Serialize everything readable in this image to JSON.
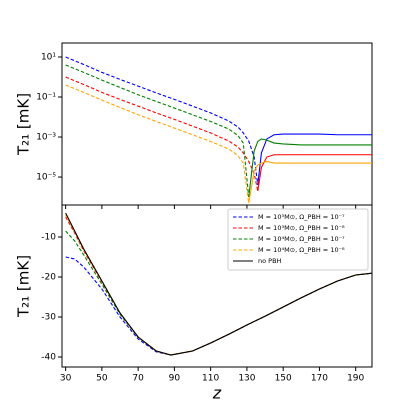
{
  "chart_data": [
    {
      "type": "line",
      "ylabel": "T₂₁  [mK]",
      "log_y": true,
      "x": [
        30,
        40,
        50,
        60,
        70,
        80,
        90,
        100,
        110,
        120,
        125,
        128,
        131,
        134,
        136,
        138,
        141,
        145,
        150,
        160,
        170,
        180,
        190,
        200
      ],
      "xlim": [
        28,
        199
      ],
      "xticks": [
        30,
        50,
        70,
        90,
        110,
        130,
        150,
        170,
        190
      ],
      "ylim": [
        4e-07,
        50
      ],
      "yticks": [
        {
          "value": 10,
          "label": "10¹"
        },
        {
          "value": 0.1,
          "label": "10⁻¹"
        },
        {
          "value": 0.001,
          "label": "10⁻³"
        },
        {
          "value": 1e-05,
          "label": "10⁻⁵"
        }
      ],
      "series": [
        {
          "color": "#0000ff",
          "dash": true,
          "values": [
            10,
            4.2,
            1.7,
            0.76,
            0.35,
            0.16,
            0.076,
            0.035,
            0.016,
            0.0063,
            0.0032,
            0.0016,
            0.00063,
            0.0001,
            4e-06,
            null,
            null,
            null,
            null,
            null,
            null,
            null,
            null,
            null
          ],
          "solid_values": [
            null,
            null,
            null,
            null,
            null,
            null,
            null,
            null,
            null,
            null,
            null,
            null,
            null,
            null,
            4e-06,
            0.00016,
            0.0008,
            0.0013,
            0.0014,
            0.0014,
            0.0014,
            0.0013,
            0.0013,
            0.0013
          ]
        },
        {
          "color": "#ff0000",
          "dash": true,
          "values": [
            1,
            0.42,
            0.17,
            0.076,
            0.035,
            0.016,
            0.0076,
            0.0035,
            0.0016,
            0.00063,
            0.00032,
            0.00016,
            6e-05,
            1.5e-05,
            2e-06,
            null,
            null,
            null,
            null,
            null,
            null,
            null,
            null,
            null
          ],
          "solid_values": [
            null,
            null,
            null,
            null,
            null,
            null,
            null,
            null,
            null,
            null,
            null,
            null,
            null,
            null,
            2e-06,
            3e-05,
            0.0001,
            0.00013,
            0.00013,
            0.00013,
            0.00013,
            0.00013,
            0.00013,
            0.00013
          ]
        },
        {
          "color": "#008000",
          "dash": true,
          "values": [
            4,
            1.7,
            0.7,
            0.3,
            0.13,
            0.06,
            0.028,
            0.013,
            0.006,
            0.0025,
            0.0012,
            0.0005,
            1e-06,
            null,
            null,
            null,
            null,
            null,
            null,
            null,
            null,
            null,
            null,
            null
          ],
          "solid_values": [
            null,
            null,
            null,
            null,
            null,
            null,
            null,
            null,
            null,
            null,
            null,
            null,
            1e-06,
            0.0002,
            0.0006,
            0.0008,
            0.0007,
            0.0005,
            0.00045,
            0.0004,
            0.0004,
            0.0004,
            0.0004,
            0.0004
          ]
        },
        {
          "color": "#ffa500",
          "dash": true,
          "values": [
            0.4,
            0.17,
            0.07,
            0.03,
            0.013,
            0.006,
            0.0028,
            0.0013,
            0.0006,
            0.00025,
            0.00012,
            5e-05,
            5e-07,
            null,
            null,
            null,
            null,
            null,
            null,
            null,
            null,
            null,
            null,
            null
          ],
          "solid_values": [
            null,
            null,
            null,
            null,
            null,
            null,
            null,
            null,
            null,
            null,
            null,
            null,
            5e-07,
            2e-05,
            4e-05,
            5e-05,
            6e-05,
            5e-05,
            5e-05,
            5e-05,
            5e-05,
            5e-05,
            5e-05,
            5e-05
          ]
        }
      ]
    },
    {
      "type": "line",
      "ylabel": "T₂₁  [mK]",
      "xlabel": "z",
      "x": [
        30,
        35,
        40,
        50,
        60,
        70,
        80,
        88,
        100,
        110,
        120,
        130,
        140,
        150,
        160,
        170,
        180,
        190,
        200
      ],
      "xlim": [
        28,
        199
      ],
      "xticks": [
        30,
        50,
        70,
        90,
        110,
        130,
        150,
        170,
        190
      ],
      "ylim": [
        -42.5,
        -2
      ],
      "yticks": [
        -10,
        -20,
        -30,
        -40
      ],
      "legend": "upper right",
      "series": [
        {
          "name": "M = 10³M⊙, Ω_PBH = 10⁻⁷",
          "color": "#0000ff",
          "dash": true,
          "values": [
            -15,
            -15.5,
            -17.5,
            -23,
            -30,
            -35.5,
            -38.7,
            -39.5,
            -38.5,
            -36.5,
            -34.3,
            -32,
            -29.8,
            -27.5,
            -25.2,
            -23,
            -21,
            -19.5,
            -19
          ]
        },
        {
          "name": "M = 10³M⊙, Ω_PBH = 10⁻⁸",
          "color": "#ff0000",
          "dash": true,
          "values": [
            -5,
            -9,
            -13.5,
            -21.2,
            -29.1,
            -35,
            -38.5,
            -39.5,
            -38.5,
            -36.5,
            -34.3,
            -32,
            -29.8,
            -27.5,
            -25.2,
            -23,
            -21,
            -19.5,
            -19
          ]
        },
        {
          "name": "M = 10⁴M⊙, Ω_PBH = 10⁻⁷",
          "color": "#008000",
          "dash": true,
          "values": [
            -8.5,
            -11,
            -14.5,
            -21.8,
            -29.3,
            -35.1,
            -38.5,
            -39.5,
            -38.5,
            -36.5,
            -34.3,
            -32,
            -29.8,
            -27.5,
            -25.2,
            -23,
            -21,
            -19.5,
            -19
          ]
        },
        {
          "name": "M = 10⁴M⊙, Ω_PBH = 10⁻⁸",
          "color": "#ffa500",
          "dash": true,
          "values": [
            -4.5,
            -8.7,
            -13.2,
            -21,
            -29,
            -35,
            -38.5,
            -39.5,
            -38.5,
            -36.5,
            -34.3,
            -32,
            -29.8,
            -27.5,
            -25.2,
            -23,
            -21,
            -19.5,
            -19
          ]
        },
        {
          "name": "no PBH",
          "color": "#000000",
          "dash": false,
          "values": [
            -4,
            -8.5,
            -13,
            -21,
            -29,
            -35,
            -38.5,
            -39.5,
            -38.5,
            -36.5,
            -34.3,
            -32,
            -29.8,
            -27.5,
            -25.2,
            -23,
            -21,
            -19.5,
            -19
          ]
        }
      ]
    }
  ]
}
